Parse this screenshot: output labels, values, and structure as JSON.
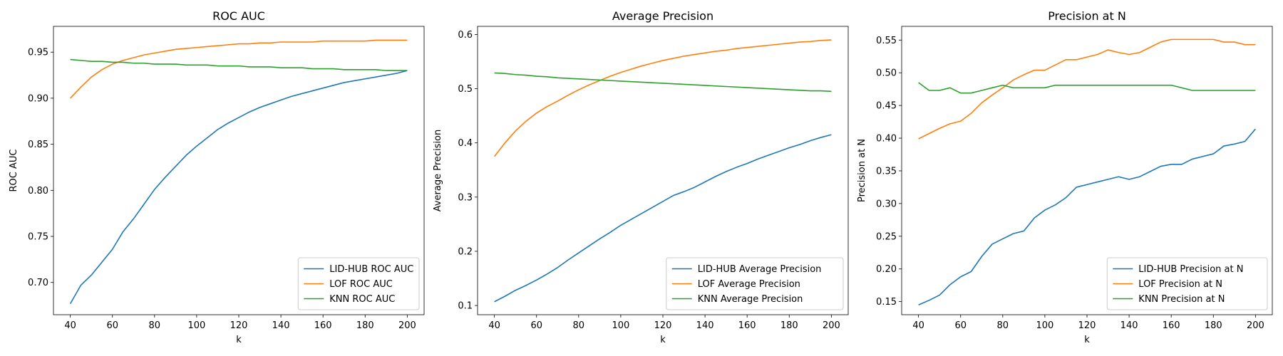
{
  "colors": {
    "lid": "#1f77b4",
    "lof": "#ff7f0e",
    "knn": "#2ca02c"
  },
  "chart_data": [
    {
      "type": "line",
      "title": "ROC AUC",
      "xlabel": "k",
      "ylabel": "ROC AUC",
      "xlim": [
        32,
        208
      ],
      "ylim": [
        0.665,
        0.978
      ],
      "xticks": [
        40,
        60,
        80,
        100,
        120,
        140,
        160,
        180,
        200
      ],
      "yticks": [
        0.7,
        0.75,
        0.8,
        0.85,
        0.9,
        0.95
      ],
      "ytick_decimals": 2,
      "legend": "lower-right",
      "x": [
        40,
        45,
        50,
        55,
        60,
        65,
        70,
        75,
        80,
        85,
        90,
        95,
        100,
        105,
        110,
        115,
        120,
        125,
        130,
        135,
        140,
        145,
        150,
        155,
        160,
        165,
        170,
        175,
        180,
        185,
        190,
        195,
        200
      ],
      "series": [
        {
          "name": "LID-HUB ROC AUC",
          "color": "lid",
          "values": [
            0.677,
            0.697,
            0.708,
            0.722,
            0.736,
            0.755,
            0.769,
            0.785,
            0.801,
            0.814,
            0.826,
            0.838,
            0.848,
            0.857,
            0.866,
            0.873,
            0.879,
            0.885,
            0.89,
            0.894,
            0.898,
            0.902,
            0.905,
            0.908,
            0.911,
            0.914,
            0.917,
            0.919,
            0.921,
            0.923,
            0.925,
            0.927,
            0.93
          ]
        },
        {
          "name": "LOF ROC AUC",
          "color": "lof",
          "values": [
            0.9,
            0.912,
            0.923,
            0.931,
            0.937,
            0.941,
            0.944,
            0.947,
            0.949,
            0.951,
            0.953,
            0.954,
            0.955,
            0.956,
            0.957,
            0.958,
            0.959,
            0.959,
            0.96,
            0.96,
            0.961,
            0.961,
            0.961,
            0.961,
            0.962,
            0.962,
            0.962,
            0.962,
            0.962,
            0.963,
            0.963,
            0.963,
            0.963
          ]
        },
        {
          "name": "KNN ROC AUC",
          "color": "knn",
          "values": [
            0.942,
            0.941,
            0.94,
            0.94,
            0.939,
            0.939,
            0.938,
            0.938,
            0.937,
            0.937,
            0.937,
            0.936,
            0.936,
            0.936,
            0.935,
            0.935,
            0.935,
            0.934,
            0.934,
            0.934,
            0.933,
            0.933,
            0.933,
            0.932,
            0.932,
            0.932,
            0.931,
            0.931,
            0.931,
            0.931,
            0.93,
            0.93,
            0.93
          ]
        }
      ]
    },
    {
      "type": "line",
      "title": "Average Precision",
      "xlabel": "k",
      "ylabel": "Average Precision",
      "xlim": [
        32,
        208
      ],
      "ylim": [
        0.083,
        0.615
      ],
      "xticks": [
        40,
        60,
        80,
        100,
        120,
        140,
        160,
        180,
        200
      ],
      "yticks": [
        0.1,
        0.2,
        0.3,
        0.4,
        0.5,
        0.6
      ],
      "ytick_decimals": 1,
      "legend": "lower-right",
      "x": [
        40,
        45,
        50,
        55,
        60,
        65,
        70,
        75,
        80,
        85,
        90,
        95,
        100,
        105,
        110,
        115,
        120,
        125,
        130,
        135,
        140,
        145,
        150,
        155,
        160,
        165,
        170,
        175,
        180,
        185,
        190,
        195,
        200
      ],
      "series": [
        {
          "name": "LID-HUB Average Precision",
          "color": "lid",
          "values": [
            0.107,
            0.117,
            0.128,
            0.137,
            0.147,
            0.158,
            0.17,
            0.184,
            0.197,
            0.21,
            0.223,
            0.235,
            0.248,
            0.259,
            0.27,
            0.281,
            0.292,
            0.303,
            0.31,
            0.318,
            0.328,
            0.338,
            0.347,
            0.355,
            0.362,
            0.37,
            0.377,
            0.384,
            0.391,
            0.397,
            0.404,
            0.41,
            0.415
          ]
        },
        {
          "name": "LOF Average Precision",
          "color": "lof",
          "values": [
            0.375,
            0.4,
            0.422,
            0.44,
            0.455,
            0.467,
            0.477,
            0.488,
            0.498,
            0.507,
            0.515,
            0.523,
            0.53,
            0.536,
            0.542,
            0.547,
            0.552,
            0.556,
            0.56,
            0.563,
            0.566,
            0.569,
            0.571,
            0.574,
            0.576,
            0.578,
            0.58,
            0.582,
            0.584,
            0.586,
            0.587,
            0.589,
            0.59
          ]
        },
        {
          "name": "KNN Average Precision",
          "color": "knn",
          "values": [
            0.529,
            0.528,
            0.526,
            0.525,
            0.523,
            0.522,
            0.52,
            0.519,
            0.518,
            0.517,
            0.516,
            0.515,
            0.514,
            0.513,
            0.512,
            0.511,
            0.51,
            0.509,
            0.508,
            0.507,
            0.506,
            0.505,
            0.504,
            0.503,
            0.502,
            0.501,
            0.5,
            0.499,
            0.498,
            0.497,
            0.496,
            0.496,
            0.495
          ]
        }
      ]
    },
    {
      "type": "line",
      "title": "Precision at N",
      "xlabel": "k",
      "ylabel": "Precision at N",
      "xlim": [
        32,
        208
      ],
      "ylim": [
        0.13,
        0.571
      ],
      "xticks": [
        40,
        60,
        80,
        100,
        120,
        140,
        160,
        180,
        200
      ],
      "yticks": [
        0.15,
        0.2,
        0.25,
        0.3,
        0.35,
        0.4,
        0.45,
        0.5,
        0.55
      ],
      "ytick_decimals": 2,
      "legend": "lower-right",
      "x": [
        40,
        45,
        50,
        55,
        60,
        65,
        70,
        75,
        80,
        85,
        90,
        95,
        100,
        105,
        110,
        115,
        120,
        125,
        130,
        135,
        140,
        145,
        150,
        155,
        160,
        165,
        170,
        175,
        180,
        185,
        190,
        195,
        200
      ],
      "series": [
        {
          "name": "LID-HUB Precision at N",
          "color": "lid",
          "values": [
            0.145,
            0.152,
            0.16,
            0.176,
            0.188,
            0.196,
            0.219,
            0.238,
            0.246,
            0.254,
            0.258,
            0.278,
            0.29,
            0.298,
            0.309,
            0.325,
            0.329,
            0.333,
            0.337,
            0.341,
            0.337,
            0.341,
            0.349,
            0.357,
            0.36,
            0.36,
            0.368,
            0.372,
            0.376,
            0.388,
            0.391,
            0.395,
            0.414
          ]
        },
        {
          "name": "LOF Precision at N",
          "color": "lof",
          "values": [
            0.399,
            0.407,
            0.415,
            0.422,
            0.426,
            0.438,
            0.454,
            0.466,
            0.477,
            0.489,
            0.497,
            0.504,
            0.504,
            0.512,
            0.52,
            0.52,
            0.524,
            0.528,
            0.535,
            0.531,
            0.528,
            0.531,
            0.539,
            0.547,
            0.551,
            0.551,
            0.551,
            0.551,
            0.551,
            0.547,
            0.547,
            0.543,
            0.543
          ]
        },
        {
          "name": "KNN Precision at N",
          "color": "knn",
          "values": [
            0.485,
            0.473,
            0.473,
            0.477,
            0.469,
            0.469,
            0.473,
            0.477,
            0.481,
            0.477,
            0.477,
            0.477,
            0.477,
            0.481,
            0.481,
            0.481,
            0.481,
            0.481,
            0.481,
            0.481,
            0.481,
            0.481,
            0.481,
            0.481,
            0.481,
            0.477,
            0.473,
            0.473,
            0.473,
            0.473,
            0.473,
            0.473,
            0.473
          ]
        }
      ]
    }
  ]
}
